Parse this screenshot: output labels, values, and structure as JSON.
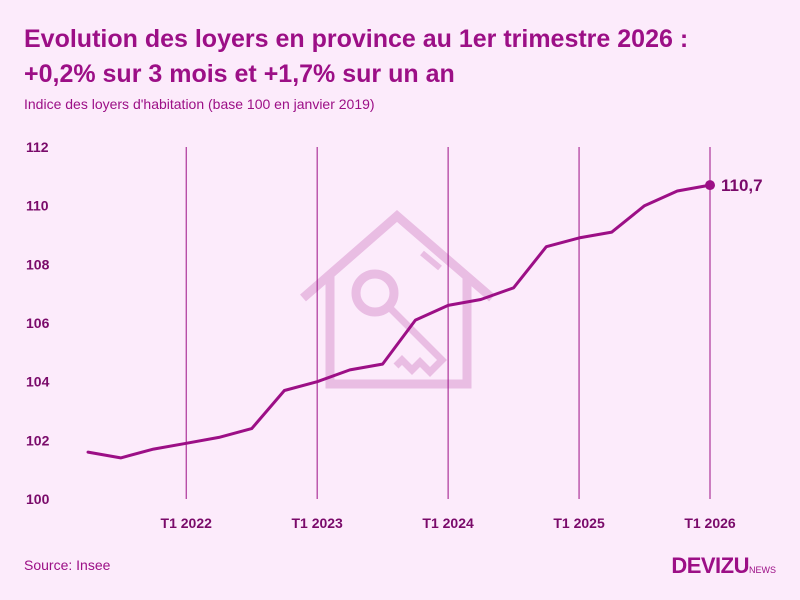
{
  "header": {
    "title_line1": "Evolution des loyers en province au 1er trimestre 2026 :",
    "title_line2": "+0,2% sur 3 mois et +1,7% sur un an",
    "subtitle": "Indice des loyers d'habitation (base 100 en janvier 2019)"
  },
  "footer": {
    "source": "Source: Insee",
    "logo_main": "DEVIZU",
    "logo_sub": "NEWS"
  },
  "colors": {
    "background": "#fcebfb",
    "accent": "#9c0f86",
    "watermark": "#e9bde3"
  },
  "watermark_icon": "house-key-icon",
  "chart_data": {
    "type": "line",
    "title": "Evolution des loyers en province au 1er trimestre 2026 : +0,2% sur 3 mois et +1,7% sur un an",
    "subtitle": "Indice des loyers d'habitation (base 100 en janvier 2019)",
    "xlabel": "",
    "ylabel": "",
    "ylim": [
      100,
      112
    ],
    "yticks": [
      "100",
      "102",
      "104",
      "106",
      "108",
      "110",
      "112"
    ],
    "xticks": [
      "T1 2022",
      "T1 2023",
      "T1 2024",
      "T1 2025",
      "T1 2026"
    ],
    "x": [
      "T2 2021",
      "T3 2021",
      "T4 2021",
      "T1 2022",
      "T2 2022",
      "T3 2022",
      "T4 2022",
      "T1 2023",
      "T2 2023",
      "T3 2023",
      "T4 2023",
      "T1 2024",
      "T2 2024",
      "T3 2024",
      "T4 2024",
      "T1 2025",
      "T2 2025",
      "T3 2025",
      "T4 2025",
      "T1 2026"
    ],
    "series": [
      {
        "values": [
          101.6,
          101.4,
          101.7,
          101.9,
          102.1,
          102.4,
          103.7,
          104.0,
          104.4,
          104.6,
          106.1,
          106.6,
          106.8,
          107.2,
          108.6,
          108.9,
          109.1,
          110.0,
          110.5,
          110.7
        ]
      }
    ],
    "end_label": "110,7",
    "grid": "vertical lines at T1 quarters"
  }
}
